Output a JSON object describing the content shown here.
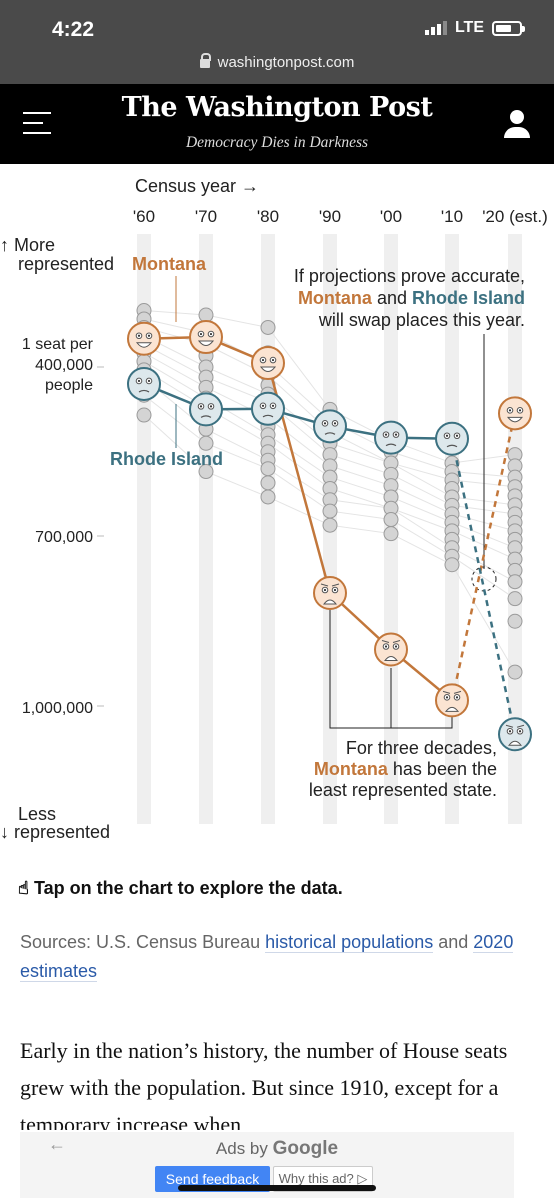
{
  "status": {
    "time": "4:22",
    "network": "LTE"
  },
  "browser": {
    "url": "washingtonpost.com"
  },
  "masthead": {
    "logo": "The Washington Post",
    "tagline": "Democracy Dies in Darkness"
  },
  "chart_data": {
    "type": "scatter",
    "x_title": "Census year →",
    "x_ticks": [
      "'60",
      "'70",
      "'80",
      "'90",
      "'00",
      "'10",
      "'20 (est.)"
    ],
    "y_ticks": [
      "1 seat per",
      "400,000",
      "people",
      "700,000",
      "1,000,000"
    ],
    "y_top_label": [
      "↑ More",
      "represented"
    ],
    "y_bottom_label": [
      "Less",
      "↓ represented"
    ],
    "ylim": [
      300000,
      1050000
    ],
    "y_reversed": true,
    "series": [
      {
        "name": "Montana",
        "color": "#c2773b",
        "x": [
          1960,
          1970,
          1980,
          1990,
          2000,
          2010,
          2020
        ],
        "y": [
          350000,
          347000,
          393000,
          800000,
          900000,
          990000,
          482000
        ]
      },
      {
        "name": "Rhode Island",
        "color": "#3c7181",
        "x": [
          1960,
          1970,
          1980,
          1990,
          2000,
          2010,
          2020
        ],
        "y": [
          430000,
          475000,
          474000,
          505000,
          525000,
          527000,
          1050000
        ]
      }
    ],
    "other_states_dots": {
      "1960": [
        300000,
        315000,
        330000,
        345000,
        360000,
        375000,
        390000,
        405000,
        420000,
        450000,
        485000
      ],
      "1970": [
        308000,
        340000,
        360000,
        380000,
        400000,
        418000,
        436000,
        455000,
        472000,
        490000,
        510000,
        535000,
        585000
      ],
      "1980": [
        330000,
        375000,
        395000,
        415000,
        432000,
        448000,
        462000,
        476000,
        490000,
        505000,
        520000,
        535000,
        550000,
        565000,
        580000,
        605000,
        630000
      ],
      "1990": [
        475000,
        495000,
        515000,
        535000,
        555000,
        575000,
        595000,
        615000,
        635000,
        655000,
        680000
      ],
      "2000": [
        530000,
        550000,
        570000,
        590000,
        610000,
        630000,
        650000,
        670000,
        695000
      ],
      "2010": [
        570000,
        585000,
        600000,
        615000,
        630000,
        645000,
        660000,
        675000,
        690000,
        705000,
        720000,
        735000,
        750000
      ],
      "2020": [
        555000,
        575000,
        595000,
        612000,
        628000,
        644000,
        660000,
        675000,
        690000,
        705000,
        720000,
        740000,
        760000,
        780000,
        810000,
        850000,
        940000
      ]
    },
    "annotations": [
      {
        "lines": [
          "If projections prove accurate,",
          "Montana and Rhode Island",
          "will swap places this year."
        ]
      },
      {
        "lines": [
          "For three decades,",
          "Montana has been the",
          "least represented state."
        ]
      }
    ]
  },
  "caption": "Tap on the chart to explore the data.",
  "sources": {
    "prefix": "Sources: U.S. Census Bureau ",
    "link1": "historical populations",
    "mid": " and ",
    "link2": "2020 estimates"
  },
  "body_text": "Early in the nation’s history, the number of House seats grew with the population. But since 1910, except for a temporary increase when",
  "ads": {
    "ads_by": "Ads by",
    "google": "Google",
    "send_feedback": "Send feedback",
    "why_this_ad": "Why this ad? ▷"
  }
}
